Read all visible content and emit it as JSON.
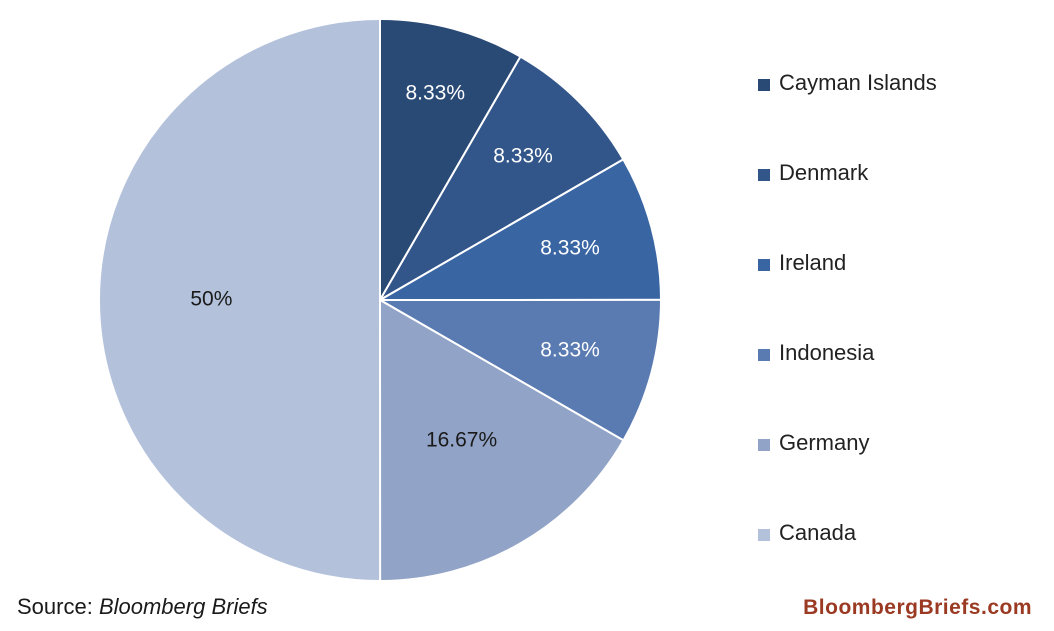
{
  "chart_data": {
    "type": "pie",
    "slices": [
      {
        "name": "Cayman Islands",
        "value": 8.33,
        "label": "8.33%",
        "color": "#2a4a76"
      },
      {
        "name": "Denmark",
        "value": 8.33,
        "label": "8.33%",
        "color": "#32558a"
      },
      {
        "name": "Ireland",
        "value": 8.33,
        "label": "8.33%",
        "color": "#3a65a3"
      },
      {
        "name": "Indonesia",
        "value": 8.33,
        "label": "8.33%",
        "color": "#5a7ab2"
      },
      {
        "name": "Germany",
        "value": 16.67,
        "label": "16.67%",
        "color": "#91a3c6"
      },
      {
        "name": "Canada",
        "value": 50,
        "label": "50%",
        "color": "#b3c1db"
      }
    ],
    "legend_position": "right",
    "label_colors": {
      "dark_slice_text": "#ffffff",
      "light_slice_text": "#1a1a1a"
    }
  },
  "footer": {
    "source_prefix": "Source: ",
    "source_name": "Bloomberg Briefs",
    "brand": "BloombergBriefs.com"
  }
}
